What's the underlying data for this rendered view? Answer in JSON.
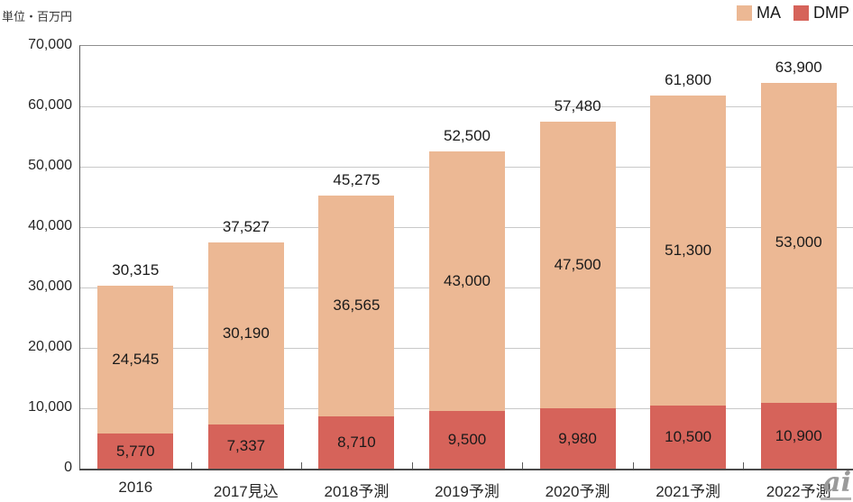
{
  "unit_label": "単位・百万円",
  "watermark": "ai",
  "legend": [
    {
      "label": "MA",
      "color": "#ecb894"
    },
    {
      "label": "DMP",
      "color": "#d6635a"
    }
  ],
  "colors": {
    "ma": "#ecb894",
    "dmp": "#d6635a",
    "gridline": "#c9c9c9",
    "axis": "#4a4a4a",
    "label_text": "#1a1a1a"
  },
  "chart_data": {
    "type": "bar",
    "stacked": true,
    "title": "",
    "xlabel": "",
    "ylabel": "単位・百万円",
    "categories": [
      "2016",
      "2017見込",
      "2018予測",
      "2019予測",
      "2020予測",
      "2021予測",
      "2022予測"
    ],
    "series": [
      {
        "name": "DMP",
        "color": "#d6635a",
        "values": [
          5770,
          7337,
          8710,
          9500,
          9980,
          10500,
          10900
        ],
        "labels": [
          "5,770",
          "7,337",
          "8,710",
          "9,500",
          "9,980",
          "10,500",
          "10,900"
        ]
      },
      {
        "name": "MA",
        "color": "#ecb894",
        "values": [
          24545,
          30190,
          36565,
          43000,
          47500,
          51300,
          53000
        ],
        "labels": [
          "24,545",
          "30,190",
          "36,565",
          "43,000",
          "47,500",
          "51,300",
          "53,000"
        ]
      }
    ],
    "totals": [
      30315,
      37527,
      45275,
      52500,
      57480,
      61800,
      63900
    ],
    "total_labels": [
      "30,315",
      "37,527",
      "45,275",
      "52,500",
      "57,480",
      "61,800",
      "63,900"
    ],
    "ylim": [
      0,
      70000
    ],
    "ytick_interval": 10000,
    "ytick_labels": [
      "0",
      "10,000",
      "20,000",
      "30,000",
      "40,000",
      "50,000",
      "60,000",
      "70,000"
    ],
    "grid": true,
    "legend_position": "top-right"
  }
}
